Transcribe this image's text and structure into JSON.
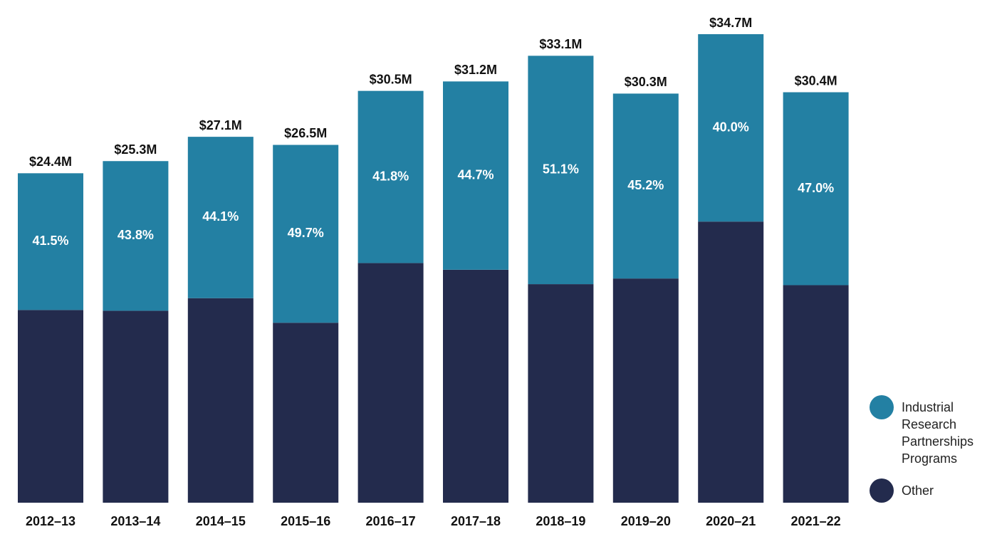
{
  "chart_data": {
    "type": "bar",
    "categories": [
      "2012–13",
      "2013–14",
      "2014–15",
      "2015–16",
      "2016–17",
      "2017–18",
      "2018–19",
      "2019–20",
      "2020–21",
      "2021–22"
    ],
    "totals": {
      "values": [
        24.4,
        25.3,
        27.1,
        26.5,
        30.5,
        31.2,
        33.1,
        30.3,
        34.7,
        30.4
      ],
      "value_labels": [
        "$24.4M",
        "$25.3M",
        "$27.1M",
        "$26.5M",
        "$30.5M",
        "$31.2M",
        "$33.1M",
        "$30.3M",
        "$34.7M",
        "$30.4M"
      ]
    },
    "series": [
      {
        "name": "Industrial Research Partnerships Programs",
        "color": "#2380a3",
        "values": [
          41.5,
          43.8,
          44.1,
          49.7,
          41.8,
          44.7,
          51.1,
          45.2,
          40.0,
          47.0
        ],
        "value_labels": [
          "41.5%",
          "43.8%",
          "44.1%",
          "49.7%",
          "41.8%",
          "44.7%",
          "51.1%",
          "45.2%",
          "40.0%",
          "47.0%"
        ]
      },
      {
        "name": "Other",
        "color": "#232b4d"
      }
    ]
  }
}
